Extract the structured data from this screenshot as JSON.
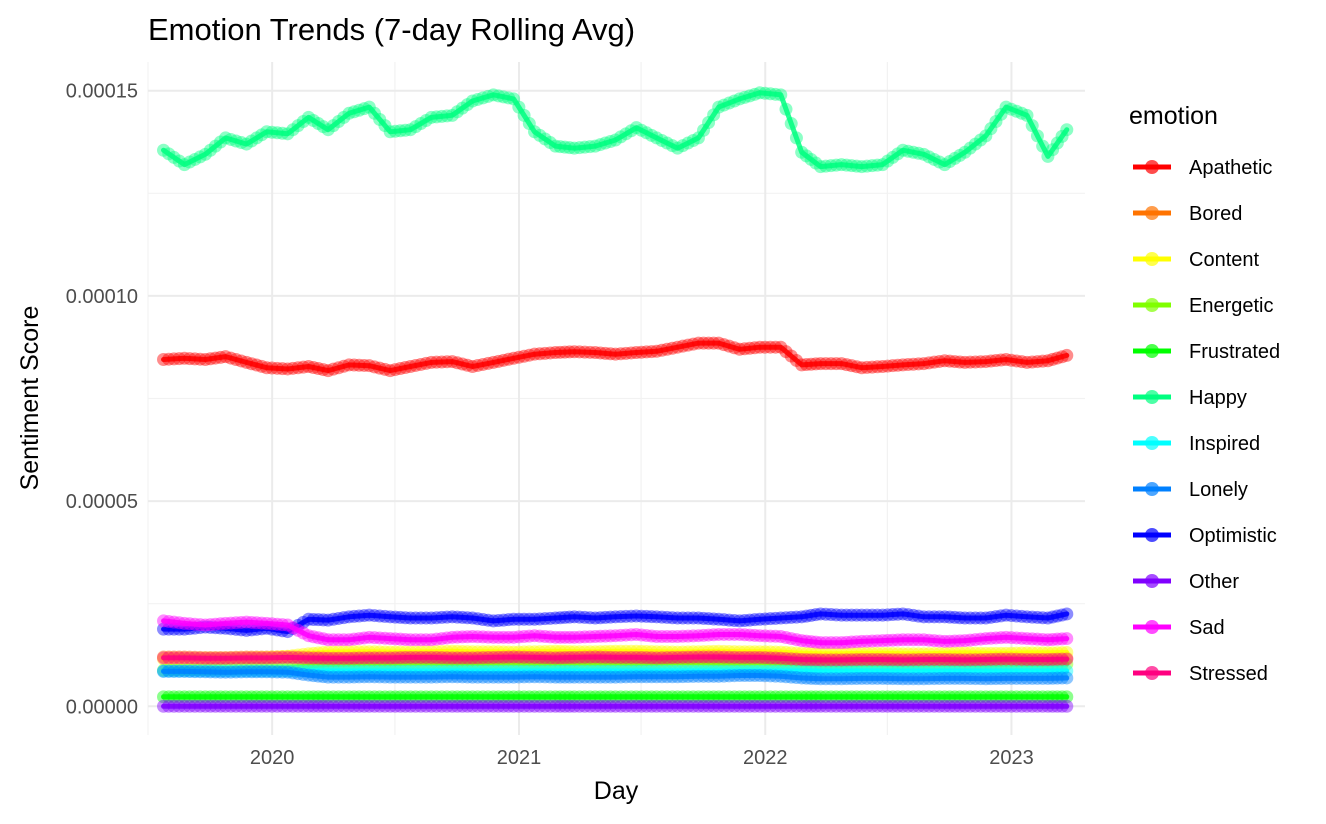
{
  "chart_data": {
    "type": "line",
    "title": "Emotion Trends (7-day Rolling Avg)",
    "xlabel": "Day",
    "ylabel": "Sentiment Score",
    "x_ticks": [
      "2020",
      "2021",
      "2022",
      "2023"
    ],
    "y_ticks": [
      "0.00000",
      "0.00005",
      "0.00010",
      "0.00015"
    ],
    "xlim": [
      "2019-07-01",
      "2023-04-20"
    ],
    "ylim": [
      -7e-06,
      0.000157
    ],
    "grid": true,
    "legend": {
      "title": "emotion",
      "position": "right"
    },
    "x": [
      "2019-07-24",
      "2019-08-24",
      "2019-09-24",
      "2019-10-24",
      "2019-11-24",
      "2019-12-24",
      "2020-01-24",
      "2020-02-24",
      "2020-03-24",
      "2020-04-24",
      "2020-05-24",
      "2020-06-24",
      "2020-07-24",
      "2020-08-24",
      "2020-09-24",
      "2020-10-24",
      "2020-11-24",
      "2020-12-24",
      "2021-01-24",
      "2021-02-24",
      "2021-03-24",
      "2021-04-24",
      "2021-05-24",
      "2021-06-24",
      "2021-07-24",
      "2021-08-24",
      "2021-09-24",
      "2021-10-24",
      "2021-11-24",
      "2021-12-24",
      "2022-01-24",
      "2022-02-24",
      "2022-03-24",
      "2022-04-24",
      "2022-05-24",
      "2022-06-24",
      "2022-07-24",
      "2022-08-24",
      "2022-09-24",
      "2022-10-24",
      "2022-11-24",
      "2022-12-24",
      "2023-01-24",
      "2023-02-24",
      "2023-03-24"
    ],
    "series": [
      {
        "name": "Apathetic",
        "color": "#ff0000",
        "values": [
          8.45e-05,
          8.48e-05,
          8.45e-05,
          8.52e-05,
          8.38e-05,
          8.25e-05,
          8.22e-05,
          8.28e-05,
          8.18e-05,
          8.32e-05,
          8.3e-05,
          8.18e-05,
          8.28e-05,
          8.38e-05,
          8.4e-05,
          8.28e-05,
          8.38e-05,
          8.48e-05,
          8.58e-05,
          8.62e-05,
          8.64e-05,
          8.62e-05,
          8.58e-05,
          8.62e-05,
          8.65e-05,
          8.75e-05,
          8.85e-05,
          8.85e-05,
          8.7e-05,
          8.75e-05,
          8.75e-05,
          8.32e-05,
          8.35e-05,
          8.35e-05,
          8.25e-05,
          8.28e-05,
          8.32e-05,
          8.35e-05,
          8.42e-05,
          8.38e-05,
          8.4e-05,
          8.45e-05,
          8.38e-05,
          8.42e-05,
          8.55e-05
        ]
      },
      {
        "name": "Bored",
        "color": "#ff7300",
        "values": [
          1.2e-05,
          1.2e-05,
          1.19e-05,
          1.19e-05,
          1.2e-05,
          1.2e-05,
          1.21e-05,
          1.2e-05,
          1.19e-05,
          1.19e-05,
          1.2e-05,
          1.2e-05,
          1.21e-05,
          1.21e-05,
          1.2e-05,
          1.2e-05,
          1.21e-05,
          1.22e-05,
          1.21e-05,
          1.2e-05,
          1.21e-05,
          1.22e-05,
          1.21e-05,
          1.21e-05,
          1.2e-05,
          1.21e-05,
          1.22e-05,
          1.22e-05,
          1.21e-05,
          1.21e-05,
          1.19e-05,
          1.16e-05,
          1.15e-05,
          1.15e-05,
          1.16e-05,
          1.16e-05,
          1.15e-05,
          1.16e-05,
          1.16e-05,
          1.15e-05,
          1.16e-05,
          1.17e-05,
          1.16e-05,
          1.16e-05,
          1.17e-05
        ]
      },
      {
        "name": "Content",
        "color": "#ffff00",
        "values": [
          1.15e-05,
          1.16e-05,
          1.17e-05,
          1.17e-05,
          1.18e-05,
          1.19e-05,
          1.22e-05,
          1.28e-05,
          1.32e-05,
          1.33e-05,
          1.33e-05,
          1.32e-05,
          1.32e-05,
          1.33e-05,
          1.34e-05,
          1.33e-05,
          1.33e-05,
          1.32e-05,
          1.33e-05,
          1.34e-05,
          1.33e-05,
          1.33e-05,
          1.34e-05,
          1.34e-05,
          1.33e-05,
          1.32e-05,
          1.33e-05,
          1.34e-05,
          1.33e-05,
          1.33e-05,
          1.32e-05,
          1.29e-05,
          1.28e-05,
          1.28e-05,
          1.29e-05,
          1.29e-05,
          1.28e-05,
          1.28e-05,
          1.29e-05,
          1.3e-05,
          1.29e-05,
          1.29e-05,
          1.3e-05,
          1.3e-05,
          1.31e-05
        ]
      },
      {
        "name": "Energetic",
        "color": "#80ff00",
        "values": [
          8.8e-06,
          8.9e-06,
          9e-06,
          9.1e-06,
          9.2e-06,
          9.3e-06,
          9.4e-06,
          9.8e-06,
          1.02e-05,
          1.03e-05,
          1.04e-05,
          1.04e-05,
          1.05e-05,
          1.05e-05,
          1.04e-05,
          1.04e-05,
          1.05e-05,
          1.05e-05,
          1.04e-05,
          1.04e-05,
          1.05e-05,
          1.05e-05,
          1.05e-05,
          1.04e-05,
          1.05e-05,
          1.06e-05,
          1.06e-05,
          1.05e-05,
          1.05e-05,
          1.06e-05,
          1.05e-05,
          1.03e-05,
          1.01e-05,
          1.01e-05,
          1.02e-05,
          1.02e-05,
          1.01e-05,
          1.01e-05,
          1.02e-05,
          1.02e-05,
          1.01e-05,
          1.02e-05,
          1.02e-05,
          1.02e-05,
          1.03e-05
        ]
      },
      {
        "name": "Frustrated",
        "color": "#00ff00",
        "values": [
          2.3e-06,
          2.3e-06,
          2.3e-06,
          2.3e-06,
          2.3e-06,
          2.3e-06,
          2.3e-06,
          2.3e-06,
          2.3e-06,
          2.3e-06,
          2.3e-06,
          2.3e-06,
          2.3e-06,
          2.3e-06,
          2.3e-06,
          2.3e-06,
          2.3e-06,
          2.3e-06,
          2.3e-06,
          2.3e-06,
          2.3e-06,
          2.3e-06,
          2.3e-06,
          2.3e-06,
          2.3e-06,
          2.3e-06,
          2.3e-06,
          2.3e-06,
          2.3e-06,
          2.3e-06,
          2.3e-06,
          2.3e-06,
          2.3e-06,
          2.3e-06,
          2.3e-06,
          2.3e-06,
          2.3e-06,
          2.3e-06,
          2.3e-06,
          2.3e-06,
          2.3e-06,
          2.3e-06,
          2.3e-06,
          2.3e-06,
          2.3e-06
        ]
      },
      {
        "name": "Happy",
        "color": "#00ff80",
        "values": [
          0.0001355,
          0.000132,
          0.0001345,
          0.0001385,
          0.000137,
          0.00014,
          0.0001395,
          0.0001435,
          0.0001405,
          0.0001445,
          0.000146,
          0.00014,
          0.0001405,
          0.0001435,
          0.000144,
          0.0001475,
          0.000149,
          0.000148,
          0.00014,
          0.0001365,
          0.000136,
          0.0001365,
          0.000138,
          0.000141,
          0.0001385,
          0.000136,
          0.0001385,
          0.000146,
          0.000148,
          0.0001495,
          0.000149,
          0.000135,
          0.0001315,
          0.000132,
          0.0001315,
          0.000132,
          0.0001355,
          0.0001345,
          0.000132,
          0.000135,
          0.000139,
          0.000146,
          0.000144,
          0.000134,
          0.0001405
        ]
      },
      {
        "name": "Inspired",
        "color": "#00ffff",
        "values": [
          8.6e-06,
          8.6e-06,
          8.6e-06,
          8.6e-06,
          8.6e-06,
          8.6e-06,
          8.6e-06,
          8.6e-06,
          8.6e-06,
          8.6e-06,
          8.6e-06,
          8.6e-06,
          8.6e-06,
          8.6e-06,
          8.6e-06,
          8.6e-06,
          8.6e-06,
          8.6e-06,
          8.6e-06,
          8.6e-06,
          8.6e-06,
          8.6e-06,
          8.6e-06,
          8.6e-06,
          8.6e-06,
          8.6e-06,
          8.6e-06,
          8.6e-06,
          8.6e-06,
          8.6e-06,
          8.6e-06,
          8.6e-06,
          8.6e-06,
          8.6e-06,
          8.6e-06,
          8.6e-06,
          8.6e-06,
          8.6e-06,
          8.6e-06,
          8.6e-06,
          8.6e-06,
          8.6e-06,
          8.6e-06,
          8.6e-06,
          8.6e-06
        ]
      },
      {
        "name": "Lonely",
        "color": "#0080ff",
        "values": [
          8.5e-06,
          8.5e-06,
          8.4e-06,
          8.3e-06,
          8.4e-06,
          8.4e-06,
          8.3e-06,
          7.6e-06,
          7.1e-06,
          7.1e-06,
          7.2e-06,
          7.1e-06,
          7.1e-06,
          7.1e-06,
          7.2e-06,
          7.1e-06,
          7.1e-06,
          7.1e-06,
          7.2e-06,
          7.1e-06,
          7.1e-06,
          7.1e-06,
          7.1e-06,
          7.2e-06,
          7.2e-06,
          7.2e-06,
          7.3e-06,
          7.3e-06,
          7.5e-06,
          7.5e-06,
          7.3e-06,
          6.9e-06,
          6.7e-06,
          6.7e-06,
          6.8e-06,
          6.8e-06,
          6.7e-06,
          6.7e-06,
          6.8e-06,
          6.8e-06,
          6.7e-06,
          6.8e-06,
          6.8e-06,
          6.8e-06,
          6.9e-06
        ]
      },
      {
        "name": "Optimistic",
        "color": "#0000ff",
        "values": [
          1.88e-05,
          1.88e-05,
          1.93e-05,
          1.9e-05,
          1.85e-05,
          1.9e-05,
          1.82e-05,
          2.12e-05,
          2.1e-05,
          2.18e-05,
          2.22e-05,
          2.18e-05,
          2.15e-05,
          2.15e-05,
          2.18e-05,
          2.15e-05,
          2.08e-05,
          2.12e-05,
          2.12e-05,
          2.15e-05,
          2.18e-05,
          2.15e-05,
          2.18e-05,
          2.2e-05,
          2.18e-05,
          2.15e-05,
          2.15e-05,
          2.12e-05,
          2.08e-05,
          2.12e-05,
          2.15e-05,
          2.18e-05,
          2.25e-05,
          2.22e-05,
          2.22e-05,
          2.22e-05,
          2.25e-05,
          2.18e-05,
          2.18e-05,
          2.15e-05,
          2.15e-05,
          2.22e-05,
          2.18e-05,
          2.15e-05,
          2.25e-05
        ]
      },
      {
        "name": "Other",
        "color": "#8000ff",
        "values": [
          0,
          0,
          0,
          0,
          0,
          0,
          0,
          0,
          0,
          0,
          0,
          0,
          0,
          0,
          0,
          0,
          0,
          0,
          0,
          0,
          0,
          0,
          0,
          0,
          0,
          0,
          0,
          0,
          0,
          0,
          0,
          0,
          0,
          0,
          0,
          0,
          0,
          0,
          0,
          0,
          0,
          0,
          0,
          0,
          0
        ]
      },
      {
        "name": "Sad",
        "color": "#ff00ff",
        "values": [
          2.08e-05,
          2.02e-05,
          1.98e-05,
          2.02e-05,
          2.05e-05,
          2.02e-05,
          1.98e-05,
          1.72e-05,
          1.62e-05,
          1.62e-05,
          1.68e-05,
          1.65e-05,
          1.62e-05,
          1.62e-05,
          1.68e-05,
          1.7e-05,
          1.68e-05,
          1.68e-05,
          1.72e-05,
          1.68e-05,
          1.68e-05,
          1.7e-05,
          1.72e-05,
          1.75e-05,
          1.7e-05,
          1.7e-05,
          1.72e-05,
          1.75e-05,
          1.75e-05,
          1.72e-05,
          1.7e-05,
          1.6e-05,
          1.55e-05,
          1.55e-05,
          1.58e-05,
          1.6e-05,
          1.62e-05,
          1.62e-05,
          1.58e-05,
          1.6e-05,
          1.65e-05,
          1.68e-05,
          1.65e-05,
          1.62e-05,
          1.65e-05
        ]
      },
      {
        "name": "Stressed",
        "color": "#ff0080",
        "values": [
          1.18e-05,
          1.18e-05,
          1.17e-05,
          1.17e-05,
          1.18e-05,
          1.18e-05,
          1.19e-05,
          1.18e-05,
          1.17e-05,
          1.17e-05,
          1.18e-05,
          1.18e-05,
          1.19e-05,
          1.19e-05,
          1.18e-05,
          1.18e-05,
          1.19e-05,
          1.2e-05,
          1.19e-05,
          1.18e-05,
          1.19e-05,
          1.2e-05,
          1.19e-05,
          1.19e-05,
          1.18e-05,
          1.19e-05,
          1.2e-05,
          1.2e-05,
          1.19e-05,
          1.19e-05,
          1.17e-05,
          1.14e-05,
          1.13e-05,
          1.13e-05,
          1.14e-05,
          1.14e-05,
          1.13e-05,
          1.14e-05,
          1.14e-05,
          1.13e-05,
          1.14e-05,
          1.15e-05,
          1.14e-05,
          1.14e-05,
          1.15e-05
        ]
      }
    ]
  }
}
